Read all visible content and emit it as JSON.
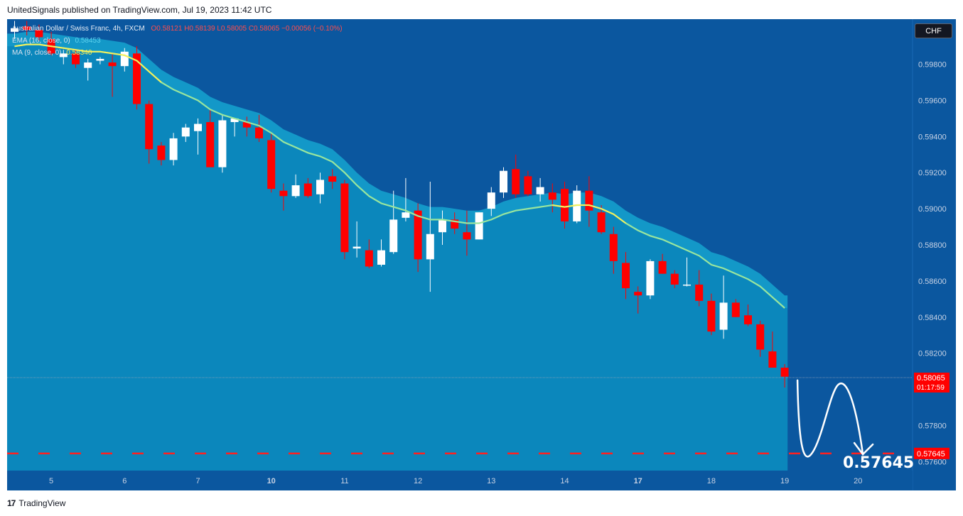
{
  "header": {
    "published_text": "UnitedSignals published on TradingView.com, Jul 19, 2023 11:42 UTC"
  },
  "legend": {
    "symbol": "Australian Dollar / Swiss Franc, 4h, FXCM",
    "ohlc": "O0.58121 H0.58139 L0.58005 C0.58065 −0.00056 (−0.10%)",
    "ema": "EMA (16, close, 0)",
    "ema_value": "0.58453",
    "ma": "MA (9, close, 0)",
    "ma_value": "0.58340"
  },
  "toolbar": {
    "currency_label": "CHF"
  },
  "price_tags": {
    "last_price": "0.58065",
    "countdown": "01:17:59",
    "target": "0.57645"
  },
  "annotation": {
    "target_text": "0.57645"
  },
  "footer": {
    "brand": "TradingView",
    "logo_text": "17"
  },
  "colors": {
    "background": "#0b579f",
    "area_fill": "#0b87bc",
    "band_fill": "#1398c8",
    "bull_candle": "#ffffff",
    "bear_candle": "#ff0000",
    "ema_line": "#99e69e",
    "ma_line": "#f5f05a",
    "target_line": "#ff2020"
  },
  "chart_data": {
    "type": "candlestick",
    "title": "",
    "ylim": [
      0.5755,
      0.6005
    ],
    "y_ticks": [
      "0.59800",
      "0.59600",
      "0.59400",
      "0.59200",
      "0.59000",
      "0.58800",
      "0.58600",
      "0.58400",
      "0.58200",
      "0.57800",
      "0.57600"
    ],
    "y_tick_values": [
      0.598,
      0.596,
      0.594,
      0.592,
      0.59,
      0.588,
      0.586,
      0.584,
      0.582,
      0.578,
      0.576
    ],
    "x_tick_labels": [
      {
        "label": "5",
        "index": 3,
        "bold": false
      },
      {
        "label": "6",
        "index": 9,
        "bold": false
      },
      {
        "label": "7",
        "index": 15,
        "bold": false
      },
      {
        "label": "10",
        "index": 21,
        "bold": true
      },
      {
        "label": "11",
        "index": 27,
        "bold": false
      },
      {
        "label": "12",
        "index": 33,
        "bold": false
      },
      {
        "label": "13",
        "index": 39,
        "bold": false
      },
      {
        "label": "14",
        "index": 45,
        "bold": false
      },
      {
        "label": "17",
        "index": 51,
        "bold": true
      },
      {
        "label": "18",
        "index": 57,
        "bold": false
      },
      {
        "label": "19",
        "index": 63,
        "bold": false
      },
      {
        "label": "20",
        "index": 69,
        "bold": false
      }
    ],
    "candles": [
      [
        0.5998,
        0.6004,
        0.5994,
        0.6
      ],
      [
        0.6001,
        0.6004,
        0.5996,
        0.5999
      ],
      [
        0.5999,
        0.6002,
        0.5993,
        0.5995
      ],
      [
        0.5994,
        0.5998,
        0.5985,
        0.5986
      ],
      [
        0.5984,
        0.5988,
        0.598,
        0.5986
      ],
      [
        0.5986,
        0.5988,
        0.5978,
        0.598
      ],
      [
        0.5978,
        0.5983,
        0.5971,
        0.5981
      ],
      [
        0.5982,
        0.5984,
        0.598,
        0.5983
      ],
      [
        0.5981,
        0.5986,
        0.5962,
        0.5979
      ],
      [
        0.5979,
        0.5989,
        0.5976,
        0.5987
      ],
      [
        0.5986,
        0.599,
        0.5955,
        0.5958
      ],
      [
        0.5958,
        0.596,
        0.5925,
        0.5933
      ],
      [
        0.5935,
        0.5937,
        0.5924,
        0.5927
      ],
      [
        0.5927,
        0.5942,
        0.5924,
        0.5939
      ],
      [
        0.594,
        0.5947,
        0.5937,
        0.5945
      ],
      [
        0.5943,
        0.595,
        0.593,
        0.5947
      ],
      [
        0.5948,
        0.5955,
        0.5924,
        0.5923
      ],
      [
        0.5923,
        0.5952,
        0.592,
        0.5949
      ],
      [
        0.5948,
        0.595,
        0.594,
        0.595
      ],
      [
        0.5948,
        0.5951,
        0.594,
        0.5945
      ],
      [
        0.5945,
        0.5952,
        0.5937,
        0.5939
      ],
      [
        0.5938,
        0.5942,
        0.5909,
        0.5911
      ],
      [
        0.591,
        0.5914,
        0.5899,
        0.5907
      ],
      [
        0.5907,
        0.5919,
        0.5906,
        0.5913
      ],
      [
        0.5914,
        0.5917,
        0.5906,
        0.5907
      ],
      [
        0.5908,
        0.592,
        0.5903,
        0.5916
      ],
      [
        0.5918,
        0.5922,
        0.5911,
        0.5915
      ],
      [
        0.5914,
        0.5916,
        0.5872,
        0.5876
      ],
      [
        0.5878,
        0.5893,
        0.5873,
        0.5879
      ],
      [
        0.5877,
        0.5883,
        0.5867,
        0.5868
      ],
      [
        0.5869,
        0.5883,
        0.5868,
        0.5877
      ],
      [
        0.5876,
        0.591,
        0.5875,
        0.5894
      ],
      [
        0.5895,
        0.5917,
        0.5893,
        0.5898
      ],
      [
        0.5899,
        0.5903,
        0.5865,
        0.5872
      ],
      [
        0.5872,
        0.5915,
        0.5854,
        0.5886
      ],
      [
        0.5887,
        0.5899,
        0.588,
        0.5894
      ],
      [
        0.5894,
        0.5898,
        0.5886,
        0.5889
      ],
      [
        0.5887,
        0.5899,
        0.5874,
        0.5883
      ],
      [
        0.5883,
        0.5898,
        0.5883,
        0.5898
      ],
      [
        0.59,
        0.5912,
        0.5896,
        0.5909
      ],
      [
        0.5909,
        0.5923,
        0.5906,
        0.5921
      ],
      [
        0.5922,
        0.593,
        0.5906,
        0.5908
      ],
      [
        0.5918,
        0.5921,
        0.5907,
        0.5908
      ],
      [
        0.5908,
        0.5917,
        0.5904,
        0.5912
      ],
      [
        0.5909,
        0.5914,
        0.5898,
        0.5905
      ],
      [
        0.5911,
        0.5915,
        0.5889,
        0.5893
      ],
      [
        0.5893,
        0.5913,
        0.5892,
        0.591
      ],
      [
        0.591,
        0.5918,
        0.589,
        0.5899
      ],
      [
        0.5898,
        0.5902,
        0.5886,
        0.5887
      ],
      [
        0.5886,
        0.589,
        0.5864,
        0.5871
      ],
      [
        0.587,
        0.5876,
        0.585,
        0.5856
      ],
      [
        0.5854,
        0.5857,
        0.5842,
        0.5852
      ],
      [
        0.5852,
        0.5872,
        0.585,
        0.5871
      ],
      [
        0.5871,
        0.5875,
        0.5864,
        0.5864
      ],
      [
        0.5864,
        0.5866,
        0.5856,
        0.5858
      ],
      [
        0.5858,
        0.5873,
        0.5857,
        0.5858
      ],
      [
        0.5858,
        0.5866,
        0.5846,
        0.5849
      ],
      [
        0.5849,
        0.5853,
        0.583,
        0.5832
      ],
      [
        0.5833,
        0.5863,
        0.5828,
        0.5848
      ],
      [
        0.5848,
        0.585,
        0.584,
        0.584
      ],
      [
        0.5841,
        0.5847,
        0.5835,
        0.5836
      ],
      [
        0.5836,
        0.5838,
        0.5818,
        0.5822
      ],
      [
        0.5821,
        0.5832,
        0.5813,
        0.5812
      ],
      [
        0.5812,
        0.5814,
        0.5801,
        0.5807
      ]
    ],
    "ema_line": [
      0.599,
      0.5991,
      0.5991,
      0.599,
      0.5989,
      0.5988,
      0.5987,
      0.5987,
      0.5986,
      0.5985,
      0.5982,
      0.5976,
      0.597,
      0.5966,
      0.5963,
      0.596,
      0.5955,
      0.5952,
      0.595,
      0.5948,
      0.5946,
      0.5942,
      0.5937,
      0.5934,
      0.5931,
      0.5929,
      0.5926,
      0.592,
      0.5913,
      0.5907,
      0.5903,
      0.5901,
      0.5899,
      0.5896,
      0.5894,
      0.5894,
      0.5893,
      0.5892,
      0.5892,
      0.5894,
      0.5897,
      0.5899,
      0.59,
      0.5901,
      0.5902,
      0.5901,
      0.5902,
      0.5902,
      0.59,
      0.5897,
      0.5892,
      0.5888,
      0.5885,
      0.5883,
      0.588,
      0.5877,
      0.5874,
      0.5869,
      0.5867,
      0.5864,
      0.5861,
      0.5857,
      0.5851,
      0.5845
    ],
    "ema_label": "EMA (16, close, 0)",
    "ma_label": "MA (9, close, 0)",
    "target_level": 0.57645,
    "last_price": 0.58065,
    "band_upper_offset": 0.0007
  }
}
